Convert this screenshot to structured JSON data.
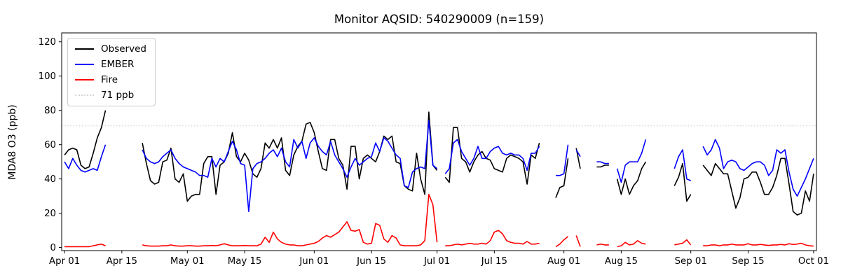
{
  "chart_data": {
    "type": "line",
    "title": "Monitor AQSID: 540290009 (n=159)",
    "xlabel": "",
    "ylabel": "MDA8 O3 (ppb)",
    "n_label": 159,
    "x_start": "Apr 01",
    "x_end": "Oct 01",
    "frequency": "daily",
    "ylim": [
      -2,
      125
    ],
    "yticks": [
      0,
      20,
      40,
      60,
      80,
      100,
      120
    ],
    "xticks": [
      {
        "label": "Apr 01",
        "day": 0
      },
      {
        "label": "Apr 15",
        "day": 14
      },
      {
        "label": "May 01",
        "day": 30
      },
      {
        "label": "May 15",
        "day": 44
      },
      {
        "label": "Jun 01",
        "day": 61
      },
      {
        "label": "Jun 15",
        "day": 75
      },
      {
        "label": "Jul 01",
        "day": 91
      },
      {
        "label": "Jul 15",
        "day": 105
      },
      {
        "label": "Aug 01",
        "day": 122
      },
      {
        "label": "Aug 15",
        "day": 136
      },
      {
        "label": "Sep 01",
        "day": 153
      },
      {
        "label": "Sep 15",
        "day": 167
      },
      {
        "label": "Oct 01",
        "day": 183
      }
    ],
    "threshold": {
      "value": 71,
      "label": "71 ppb",
      "color": "#d3d3d3",
      "style": "dotted"
    },
    "legend": [
      {
        "label": "Observed",
        "color": "#000000",
        "style": "solid"
      },
      {
        "label": "EMBER",
        "color": "#0000ff",
        "style": "solid"
      },
      {
        "label": "Fire",
        "color": "#ff0000",
        "style": "solid"
      },
      {
        "label": "71 ppb",
        "color": "#d3d3d3",
        "style": "dotted"
      }
    ],
    "series": [
      {
        "name": "Observed",
        "color": "#000000",
        "values": [
          54,
          57,
          58,
          57,
          48,
          46,
          47,
          55,
          64,
          70,
          80,
          null,
          null,
          null,
          null,
          null,
          null,
          null,
          null,
          61,
          49,
          39,
          37,
          38,
          50,
          51,
          58,
          40,
          38,
          43,
          27,
          30,
          31,
          31,
          49,
          53,
          53,
          31,
          48,
          50,
          55,
          67,
          53,
          50,
          55,
          51,
          43,
          41,
          46,
          61,
          58,
          63,
          58,
          64,
          45,
          42,
          54,
          59,
          62,
          72,
          73,
          67,
          56,
          46,
          45,
          63,
          63,
          52,
          48,
          34,
          59,
          59,
          40,
          52,
          54,
          52,
          50,
          56,
          65,
          63,
          65,
          50,
          49,
          36,
          34,
          33,
          55,
          40,
          31,
          79,
          48,
          45,
          null,
          41,
          38,
          70,
          70,
          52,
          50,
          44,
          50,
          54,
          56,
          52,
          51,
          46,
          45,
          44,
          52,
          54,
          53,
          52,
          50,
          37,
          54,
          52,
          61,
          null,
          null,
          null,
          29,
          35,
          36,
          52,
          null,
          58,
          46,
          null,
          null,
          null,
          47,
          47,
          48,
          48,
          null,
          40,
          31,
          40,
          31,
          36,
          39,
          46,
          50,
          null,
          null,
          null,
          null,
          null,
          null,
          36,
          41,
          49,
          27,
          31,
          null,
          null,
          48,
          45,
          42,
          49,
          46,
          43,
          43,
          33,
          23,
          29,
          40,
          41,
          44,
          44,
          38,
          31,
          31,
          35,
          42,
          52,
          52,
          37,
          21,
          19,
          20,
          33,
          27,
          43
        ]
      },
      {
        "name": "EMBER",
        "color": "#0000ff",
        "values": [
          50,
          46,
          52,
          48,
          45,
          44,
          45,
          46,
          45,
          53,
          60,
          null,
          null,
          null,
          null,
          null,
          null,
          null,
          null,
          57,
          52,
          50,
          49,
          50,
          53,
          55,
          57,
          52,
          49,
          47,
          46,
          45,
          44,
          42,
          42,
          41,
          52,
          47,
          52,
          50,
          56,
          62,
          57,
          49,
          48,
          21,
          46,
          49,
          50,
          52,
          55,
          57,
          53,
          58,
          50,
          47,
          63,
          58,
          62,
          52,
          61,
          64,
          59,
          56,
          54,
          62,
          54,
          50,
          46,
          41,
          47,
          52,
          48,
          50,
          52,
          53,
          61,
          56,
          64,
          62,
          58,
          54,
          52,
          36,
          35,
          44,
          46,
          47,
          46,
          74,
          48,
          46,
          null,
          43,
          46,
          61,
          63,
          56,
          52,
          48,
          52,
          59,
          52,
          52,
          56,
          58,
          59,
          55,
          54,
          55,
          54,
          54,
          52,
          45,
          55,
          55,
          59,
          null,
          null,
          null,
          42,
          42,
          43,
          60,
          null,
          57,
          53,
          null,
          null,
          null,
          50,
          50,
          49,
          49,
          null,
          46,
          38,
          48,
          50,
          50,
          50,
          55,
          63,
          null,
          null,
          null,
          null,
          null,
          null,
          46,
          53,
          57,
          40,
          39,
          null,
          null,
          59,
          54,
          57,
          63,
          58,
          46,
          50,
          51,
          50,
          46,
          45,
          47,
          49,
          50,
          50,
          48,
          42,
          45,
          57,
          55,
          57,
          44,
          34,
          30,
          35,
          40,
          46,
          52
        ]
      },
      {
        "name": "Fire",
        "color": "#ff0000",
        "values": [
          0.5,
          0.5,
          0.5,
          0.5,
          0.5,
          0.5,
          0.5,
          1,
          1.5,
          2,
          1,
          null,
          null,
          null,
          null,
          null,
          null,
          null,
          null,
          1.5,
          1,
          0.8,
          0.8,
          0.8,
          1,
          1,
          1.5,
          1,
          0.8,
          0.8,
          1,
          1,
          0.8,
          0.8,
          1,
          1,
          1.2,
          1,
          1.5,
          2.2,
          1.5,
          1,
          1,
          1,
          1.2,
          1,
          1,
          1,
          2,
          6,
          3,
          9,
          5,
          3,
          2,
          1.5,
          1.5,
          1,
          1,
          1.5,
          2,
          2.5,
          3.5,
          5.5,
          7,
          6,
          7.5,
          9,
          12,
          15,
          10,
          9.5,
          10.5,
          3,
          2,
          2.5,
          14,
          13,
          5,
          3,
          7,
          5.5,
          1.5,
          1,
          1,
          1,
          1,
          1.5,
          4,
          31,
          25,
          3,
          null,
          1,
          1,
          1.5,
          2,
          1.5,
          2,
          2.5,
          2,
          2,
          2.5,
          2,
          4,
          9,
          10,
          8,
          4,
          3,
          2.5,
          2.5,
          2,
          3.5,
          2,
          2,
          2.5,
          null,
          null,
          null,
          0.5,
          2,
          4.5,
          6.5,
          null,
          7,
          0.5,
          null,
          null,
          null,
          1.5,
          2,
          1.5,
          1.5,
          null,
          0.5,
          1,
          3,
          1.5,
          2,
          4,
          2.5,
          2,
          null,
          null,
          null,
          null,
          null,
          null,
          1.5,
          2,
          2.5,
          4.5,
          1.5,
          null,
          null,
          1,
          1,
          1.5,
          1.5,
          1,
          1.5,
          1.5,
          2,
          1.5,
          1.5,
          1.5,
          2.2,
          1.5,
          1.5,
          1.8,
          1.5,
          1.2,
          1.5,
          1.5,
          1.8,
          1.5,
          2.2,
          1.8,
          2,
          2.5,
          1.5,
          1,
          0.8
        ]
      }
    ]
  }
}
